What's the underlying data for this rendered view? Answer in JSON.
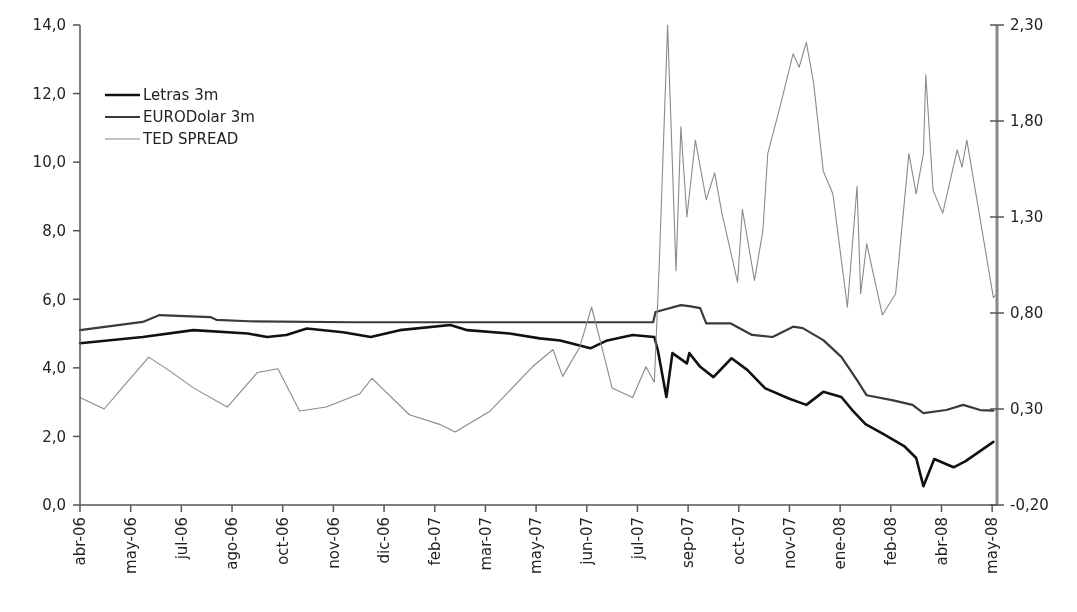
{
  "chart_data": {
    "type": "line",
    "xlim": [
      "2006-04-18",
      "2008-05-17"
    ],
    "xticks": [
      {
        "value": "2006-04-18",
        "label": "abr-06"
      },
      {
        "value": "2006-05-30",
        "label": "may-06"
      },
      {
        "value": "2006-07-11",
        "label": "jul-06"
      },
      {
        "value": "2006-08-22",
        "label": "ago-06"
      },
      {
        "value": "2006-10-03",
        "label": "oct-06"
      },
      {
        "value": "2006-11-14",
        "label": "nov-06"
      },
      {
        "value": "2006-12-26",
        "label": "dic-06"
      },
      {
        "value": "2007-02-06",
        "label": "feb-07"
      },
      {
        "value": "2007-03-20",
        "label": "mar-07"
      },
      {
        "value": "2007-05-01",
        "label": "may-07"
      },
      {
        "value": "2007-06-12",
        "label": "jun-07"
      },
      {
        "value": "2007-07-24",
        "label": "jul-07"
      },
      {
        "value": "2007-09-04",
        "label": "sep-07"
      },
      {
        "value": "2007-10-16",
        "label": "oct-07"
      },
      {
        "value": "2007-11-27",
        "label": "nov-07"
      },
      {
        "value": "2008-01-08",
        "label": "ene-08"
      },
      {
        "value": "2008-02-19",
        "label": "feb-08"
      },
      {
        "value": "2008-04-01",
        "label": "abr-08"
      },
      {
        "value": "2008-05-13",
        "label": "may-08"
      }
    ],
    "ylim": [
      0,
      14
    ],
    "yticks": [
      {
        "value": 0,
        "label": "0,0"
      },
      {
        "value": 2,
        "label": "2,0"
      },
      {
        "value": 4,
        "label": "4,0"
      },
      {
        "value": 6,
        "label": "6,0"
      },
      {
        "value": 8,
        "label": "8,0"
      },
      {
        "value": 10,
        "label": "10,0"
      },
      {
        "value": 12,
        "label": "12,0"
      },
      {
        "value": 14,
        "label": "14,0"
      }
    ],
    "y2lim": [
      -0.2,
      2.3
    ],
    "y2ticks": [
      {
        "value": -0.2,
        "label": "-0,20"
      },
      {
        "value": 0.3,
        "label": "0,30"
      },
      {
        "value": 0.8,
        "label": "0,80"
      },
      {
        "value": 1.3,
        "label": "1,30"
      },
      {
        "value": 1.8,
        "label": "1,80"
      },
      {
        "value": 2.3,
        "label": "2,30"
      }
    ],
    "legend": "top left",
    "grid": false,
    "series": [
      {
        "name": "Letras 3m",
        "color": "#111111",
        "x": [
          "2006-04-18",
          "2006-06-09",
          "2006-07-21",
          "2006-09-04",
          "2006-09-20",
          "2006-10-06",
          "2006-10-23",
          "2006-11-22",
          "2006-12-15",
          "2007-01-08",
          "2007-02-19",
          "2007-03-05",
          "2007-04-09",
          "2007-05-04",
          "2007-05-21",
          "2007-06-15",
          "2007-06-29",
          "2007-07-20",
          "2007-08-07",
          "2007-08-10",
          "2007-08-17",
          "2007-08-22",
          "2007-09-03",
          "2007-09-05",
          "2007-09-14",
          "2007-09-25",
          "2007-10-10",
          "2007-10-23",
          "2007-11-07",
          "2007-11-27",
          "2007-12-11",
          "2007-12-25",
          "2008-01-09",
          "2008-01-18",
          "2008-01-29",
          "2008-02-13",
          "2008-03-01",
          "2008-03-11",
          "2008-03-17",
          "2008-03-26",
          "2008-04-11",
          "2008-04-21",
          "2008-05-14"
        ],
        "values": [
          4.72,
          4.9,
          5.1,
          5.0,
          4.9,
          4.96,
          5.15,
          5.04,
          4.9,
          5.1,
          5.25,
          5.1,
          5.0,
          4.86,
          4.8,
          4.57,
          4.8,
          4.96,
          4.9,
          4.5,
          3.15,
          4.43,
          4.13,
          4.43,
          4.03,
          3.73,
          4.28,
          3.94,
          3.4,
          3.1,
          2.92,
          3.3,
          3.15,
          2.77,
          2.36,
          2.07,
          1.72,
          1.37,
          0.55,
          1.34,
          1.1,
          1.28,
          1.84
        ]
      },
      {
        "name": "EURODolar 3m",
        "color": "#3a3a3a",
        "x": [
          "2006-04-18",
          "2006-06-09",
          "2006-06-23",
          "2006-08-04",
          "2006-08-09",
          "2006-09-05",
          "2006-12-01",
          "2007-04-03",
          "2007-08-06",
          "2007-08-08",
          "2007-08-29",
          "2007-09-05",
          "2007-09-14",
          "2007-09-19",
          "2007-10-09",
          "2007-10-27",
          "2007-11-13",
          "2007-11-30",
          "2007-12-08",
          "2007-12-25",
          "2008-01-09",
          "2008-01-22",
          "2008-01-30",
          "2008-02-20",
          "2008-03-08",
          "2008-03-17",
          "2008-04-05",
          "2008-04-19",
          "2008-05-03",
          "2008-05-14"
        ],
        "values": [
          5.1,
          5.34,
          5.54,
          5.48,
          5.4,
          5.36,
          5.33,
          5.33,
          5.33,
          5.63,
          5.83,
          5.8,
          5.74,
          5.3,
          5.3,
          4.96,
          4.9,
          5.2,
          5.16,
          4.81,
          4.32,
          3.64,
          3.2,
          3.06,
          2.92,
          2.68,
          2.77,
          2.92,
          2.77,
          2.75
        ]
      },
      {
        "name": "TED SPREAD",
        "color": "#8a8a8a",
        "axis": "y2",
        "x": [
          "2006-04-18",
          "2006-05-08",
          "2006-05-27",
          "2006-06-14",
          "2006-07-01",
          "2006-07-21",
          "2006-08-18",
          "2006-09-12",
          "2006-09-29",
          "2006-10-17",
          "2006-11-08",
          "2006-12-06",
          "2006-12-16",
          "2007-01-16",
          "2007-02-10",
          "2007-02-23",
          "2007-03-24",
          "2007-04-28",
          "2007-05-15",
          "2007-05-23",
          "2007-06-06",
          "2007-06-16",
          "2007-06-23",
          "2007-07-03",
          "2007-07-20",
          "2007-07-31",
          "2007-08-07",
          "2007-08-11",
          "2007-08-18",
          "2007-08-25",
          "2007-08-29",
          "2007-09-03",
          "2007-09-10",
          "2007-09-19",
          "2007-09-26",
          "2007-10-02",
          "2007-10-15",
          "2007-10-19",
          "2007-10-29",
          "2007-11-05",
          "2007-11-09",
          "2007-11-19",
          "2007-11-30",
          "2007-12-05",
          "2007-12-11",
          "2007-12-17",
          "2007-12-25",
          "2008-01-02",
          "2008-01-14",
          "2008-01-22",
          "2008-01-25",
          "2008-01-30",
          "2008-02-12",
          "2008-02-23",
          "2008-03-05",
          "2008-03-11",
          "2008-03-17",
          "2008-03-19",
          "2008-03-25",
          "2008-04-02",
          "2008-04-14",
          "2008-04-18",
          "2008-04-22",
          "2008-04-29",
          "2008-05-14",
          "2008-05-17"
        ],
        "values": [
          0.36,
          0.3,
          0.44,
          0.57,
          0.5,
          0.41,
          0.31,
          0.49,
          0.51,
          0.29,
          0.31,
          0.38,
          0.46,
          0.27,
          0.22,
          0.18,
          0.29,
          0.52,
          0.61,
          0.47,
          0.62,
          0.83,
          0.66,
          0.41,
          0.36,
          0.52,
          0.44,
          1.04,
          2.3,
          1.02,
          1.77,
          1.3,
          1.7,
          1.39,
          1.53,
          1.32,
          0.96,
          1.34,
          0.97,
          1.23,
          1.63,
          1.87,
          2.15,
          2.08,
          2.21,
          2.0,
          1.54,
          1.42,
          0.83,
          1.46,
          0.9,
          1.16,
          0.79,
          0.9,
          1.63,
          1.42,
          1.63,
          2.04,
          1.44,
          1.32,
          1.65,
          1.56,
          1.7,
          1.44,
          0.88,
          0.9
        ]
      }
    ]
  }
}
